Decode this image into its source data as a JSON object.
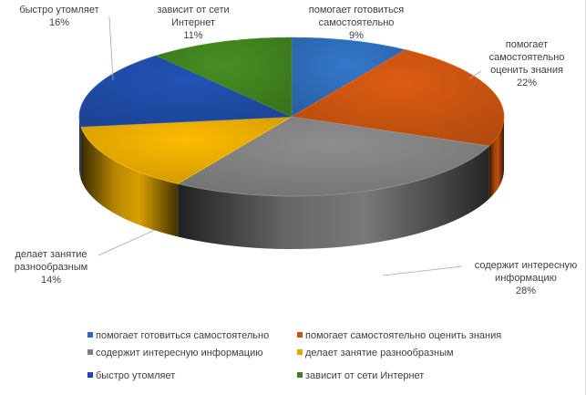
{
  "chart_data": {
    "type": "pie",
    "style": "3d",
    "legend_position": "bottom",
    "categories": [
      "помогает готовиться самостоятельно",
      "помогает самостоятельно оценить знания",
      "содержит интересную информацию",
      "делает занятие разнообразным",
      "быстро утомляет",
      "зависит от сети Интернет"
    ],
    "values": [
      9,
      22,
      28,
      14,
      16,
      11
    ],
    "value_labels": [
      "9%",
      "22%",
      "28%",
      "14%",
      "16%",
      "11%"
    ],
    "label_lines": [
      [
        "помогает готовиться",
        "самостоятельно"
      ],
      [
        "помогает",
        "самостоятельно",
        "оценить знания"
      ],
      [
        "содержит интересную",
        "информацию"
      ],
      [
        "делает занятие",
        "разнообразным"
      ],
      [
        "быстро утомляет"
      ],
      [
        "зависит от сети",
        "Интернет"
      ]
    ],
    "colors": [
      "#2e6bb5",
      "#c5520f",
      "#7f7f7f",
      "#e3a700",
      "#1f4aa3",
      "#3f7f1f"
    ]
  }
}
